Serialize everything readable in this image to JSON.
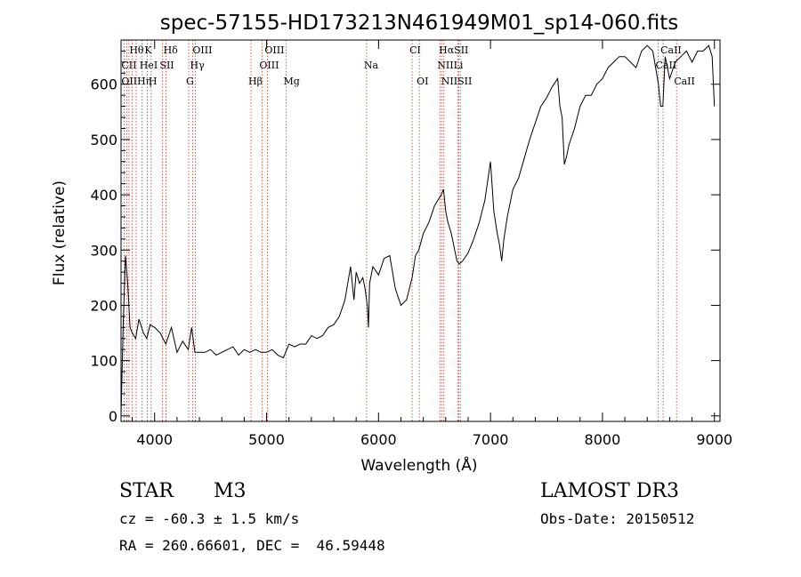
{
  "chart_data": {
    "type": "line",
    "title": "spec-57155-HD173213N461949M01_sp14-060.fits",
    "xlabel": "Wavelength (Å)",
    "ylabel": "Flux (relative)",
    "xlim": [
      3700,
      9050
    ],
    "ylim": [
      -10,
      680
    ],
    "xticks": [
      4000,
      5000,
      6000,
      7000,
      8000,
      9000
    ],
    "yticks": [
      0,
      100,
      200,
      300,
      400,
      500,
      600
    ],
    "series": [
      {
        "name": "flux",
        "x": [
          3700,
          3720,
          3740,
          3760,
          3780,
          3800,
          3830,
          3860,
          3900,
          3930,
          3960,
          4000,
          4050,
          4100,
          4150,
          4200,
          4250,
          4300,
          4330,
          4360,
          4400,
          4450,
          4500,
          4550,
          4600,
          4650,
          4700,
          4750,
          4800,
          4850,
          4900,
          4950,
          5000,
          5050,
          5100,
          5150,
          5200,
          5250,
          5300,
          5350,
          5400,
          5450,
          5500,
          5550,
          5600,
          5650,
          5700,
          5750,
          5780,
          5800,
          5830,
          5860,
          5880,
          5900,
          5910,
          5920,
          5950,
          6000,
          6050,
          6100,
          6150,
          6200,
          6250,
          6300,
          6330,
          6360,
          6400,
          6450,
          6500,
          6530,
          6560,
          6580,
          6600,
          6620,
          6650,
          6680,
          6700,
          6720,
          6750,
          6800,
          6850,
          6900,
          6950,
          7000,
          7030,
          7060,
          7080,
          7100,
          7120,
          7150,
          7200,
          7250,
          7300,
          7350,
          7400,
          7450,
          7500,
          7550,
          7600,
          7620,
          7640,
          7660,
          7680,
          7700,
          7750,
          7800,
          7850,
          7900,
          7950,
          8000,
          8050,
          8100,
          8150,
          8200,
          8250,
          8300,
          8350,
          8400,
          8450,
          8500,
          8520,
          8540,
          8560,
          8600,
          8650,
          8700,
          8750,
          8800,
          8850,
          8900,
          8950,
          8980,
          9000
        ],
        "values": [
          0,
          170,
          290,
          240,
          160,
          150,
          140,
          175,
          150,
          140,
          165,
          160,
          150,
          130,
          160,
          115,
          135,
          120,
          160,
          115,
          115,
          115,
          120,
          110,
          115,
          120,
          125,
          110,
          120,
          115,
          120,
          115,
          115,
          120,
          110,
          105,
          130,
          125,
          130,
          130,
          145,
          140,
          145,
          160,
          165,
          180,
          210,
          270,
          210,
          260,
          240,
          250,
          230,
          200,
          160,
          240,
          270,
          255,
          285,
          290,
          230,
          200,
          210,
          250,
          290,
          300,
          330,
          350,
          380,
          390,
          400,
          410,
          370,
          350,
          330,
          300,
          280,
          275,
          280,
          295,
          320,
          350,
          390,
          460,
          370,
          330,
          310,
          280,
          320,
          360,
          410,
          430,
          465,
          500,
          530,
          560,
          575,
          595,
          610,
          560,
          540,
          455,
          470,
          490,
          520,
          560,
          580,
          580,
          600,
          610,
          630,
          640,
          650,
          650,
          640,
          630,
          660,
          670,
          660,
          600,
          560,
          560,
          650,
          610,
          640,
          650,
          660,
          640,
          660,
          660,
          670,
          650,
          560
        ]
      }
    ],
    "emission_lines": [
      {
        "label": "Hθ",
        "wavelength": 3798,
        "row": 1
      },
      {
        "label": "K",
        "wavelength": 3934,
        "row": 1
      },
      {
        "label": "Hδ",
        "wavelength": 4102,
        "row": 1
      },
      {
        "label": "OIII",
        "wavelength": 4363,
        "row": 1
      },
      {
        "label": "OIII",
        "wavelength": 5007,
        "row": 1
      },
      {
        "label": "CI",
        "wavelength": 6300,
        "row": 1
      },
      {
        "label": "HαSII",
        "wavelength": 6563,
        "row": 1
      },
      {
        "label": "CaII",
        "wavelength": 8542,
        "row": 1
      },
      {
        "label": "CII",
        "wavelength": 3727,
        "row": 2
      },
      {
        "label": "HeI",
        "wavelength": 3889,
        "row": 2
      },
      {
        "label": "SII",
        "wavelength": 4069,
        "row": 2
      },
      {
        "label": "Hγ",
        "wavelength": 4340,
        "row": 2
      },
      {
        "label": "OIII",
        "wavelength": 4959,
        "row": 2
      },
      {
        "label": "Na",
        "wavelength": 5893,
        "row": 2
      },
      {
        "label": "NIILi",
        "wavelength": 6548,
        "row": 2
      },
      {
        "label": "CaII",
        "wavelength": 8498,
        "row": 2
      },
      {
        "label": "OIIHη",
        "wavelength": 3727,
        "row": 3
      },
      {
        "label": "H",
        "wavelength": 3969,
        "row": 3
      },
      {
        "label": "G",
        "wavelength": 4304,
        "row": 3
      },
      {
        "label": "Hβ",
        "wavelength": 4861,
        "row": 3
      },
      {
        "label": "Mg",
        "wavelength": 5175,
        "row": 3
      },
      {
        "label": "OI",
        "wavelength": 6364,
        "row": 3
      },
      {
        "label": "NIISII",
        "wavelength": 6584,
        "row": 3
      },
      {
        "label": "CaII",
        "wavelength": 8662,
        "row": 3
      }
    ],
    "line_markers": [
      3727,
      3750,
      3771,
      3798,
      3835,
      3889,
      3934,
      3969,
      4069,
      4102,
      4304,
      4340,
      4363,
      4861,
      4959,
      5007,
      5175,
      5893,
      6300,
      6364,
      6548,
      6563,
      6584,
      6707,
      6716,
      6731,
      8498,
      8542,
      8662
    ]
  },
  "info": {
    "class": "STAR",
    "subclass": "M3",
    "survey": "LAMOST DR3",
    "cz": "cz = -60.3 ± 1.5 km/s",
    "obs_date": "Obs-Date: 20150512",
    "coords": "RA = 260.66601, DEC =  46.59448"
  },
  "colors": {
    "line_marker": "#c0392b",
    "spectrum": "#000000"
  }
}
